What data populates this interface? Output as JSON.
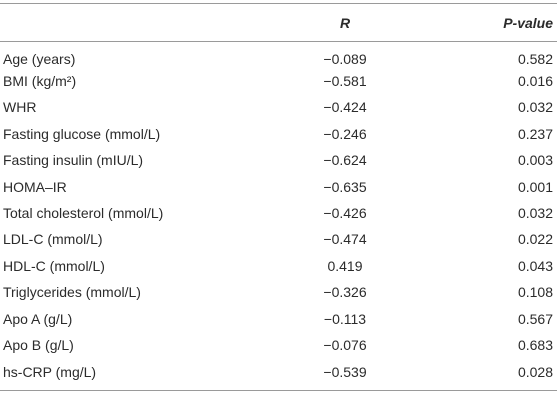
{
  "table": {
    "header": [
      "R",
      "P-value"
    ],
    "rows": [
      [
        "Age (years)",
        "−0.089",
        "0.582"
      ],
      [
        "BMI (kg/m²)",
        "−0.581",
        "0.016"
      ],
      [
        "WHR",
        "−0.424",
        "0.032"
      ],
      [
        "Fasting glucose (mmol/L)",
        "−0.246",
        "0.237"
      ],
      [
        "Fasting insulin (mIU/L)",
        "−0.624",
        "0.003"
      ],
      [
        "HOMA–IR",
        "−0.635",
        "0.001"
      ],
      [
        "Total cholesterol (mmol/L)",
        "−0.426",
        "0.032"
      ],
      [
        "LDL-C (mmol/L)",
        "−0.474",
        "0.022"
      ],
      [
        "HDL-C (mmol/L)",
        "0.419",
        "0.043"
      ],
      [
        "Triglycerides (mmol/L)",
        "−0.326",
        "0.108"
      ],
      [
        "Apo A (g/L)",
        "−0.113",
        "0.567"
      ],
      [
        "Apo B (g/L)",
        "−0.076",
        "0.683"
      ],
      [
        "hs-CRP (mg/L)",
        "−0.539",
        "0.028"
      ]
    ]
  }
}
